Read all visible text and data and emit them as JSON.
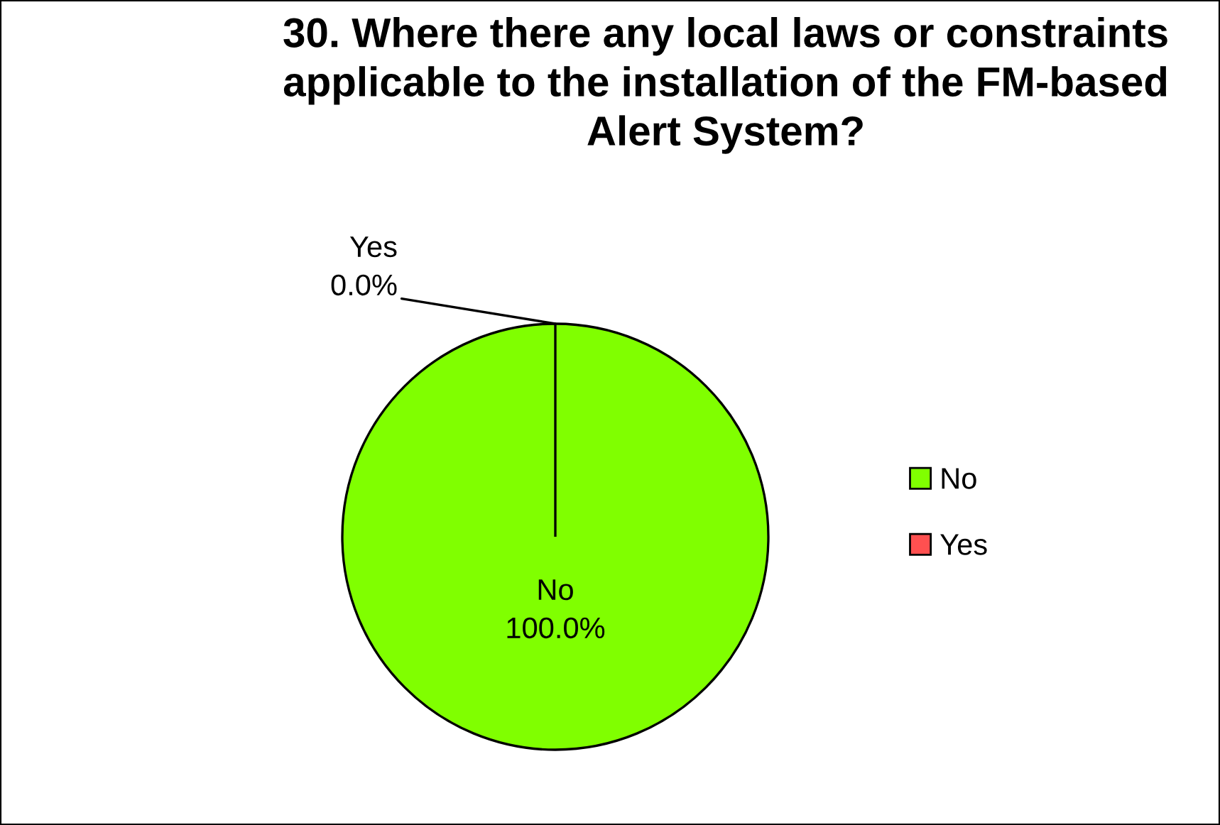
{
  "chart_data": {
    "type": "pie",
    "title": "30. Where there any local laws or constraints applicable to the installation of the FM-based Alert System?",
    "categories": [
      "No",
      "Yes"
    ],
    "values": [
      100,
      0
    ],
    "colors": [
      "#80ff00",
      "#ff5050"
    ],
    "value_labels": [
      "100.0%",
      "0.0%"
    ],
    "legend": "right"
  }
}
